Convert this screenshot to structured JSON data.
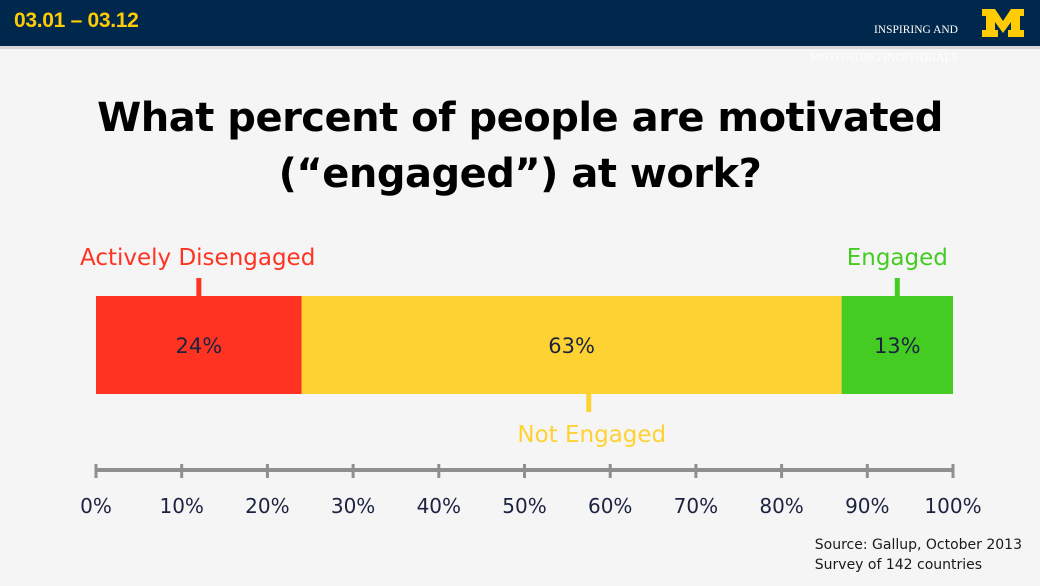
{
  "header": {
    "range": "03.01 – 03.12",
    "course_line1": "INSPIRING AND",
    "course_line2": "MOTIVATING INDIVIDUALS",
    "logo_letter": "M",
    "logo_color": "#ffcb05",
    "bar_color": "#00274c"
  },
  "title_line1": "What percent of people are motivated",
  "title_line2": "(“engaged”) at work?",
  "chart_data": {
    "type": "bar",
    "stacked": true,
    "orientation": "horizontal",
    "categories": [
      "Actively Disengaged",
      "Not Engaged",
      "Engaged"
    ],
    "values": [
      24,
      63,
      13
    ],
    "value_labels": [
      "24%",
      "63%",
      "13%"
    ],
    "colors": [
      "#ff3322",
      "#ffd233",
      "#44cc22"
    ],
    "label_colors": [
      "#ff3322",
      "#ffd233",
      "#44cc22"
    ],
    "xlim": [
      0,
      100
    ],
    "ticks": [
      0,
      10,
      20,
      30,
      40,
      50,
      60,
      70,
      80,
      90,
      100
    ],
    "tick_labels": [
      "0%",
      "10%",
      "20%",
      "30%",
      "40%",
      "50%",
      "60%",
      "70%",
      "80%",
      "90%",
      "100%"
    ],
    "grid": false
  },
  "source_line1": "Source: Gallup, October 2013",
  "source_line2": "Survey of 142 countries"
}
